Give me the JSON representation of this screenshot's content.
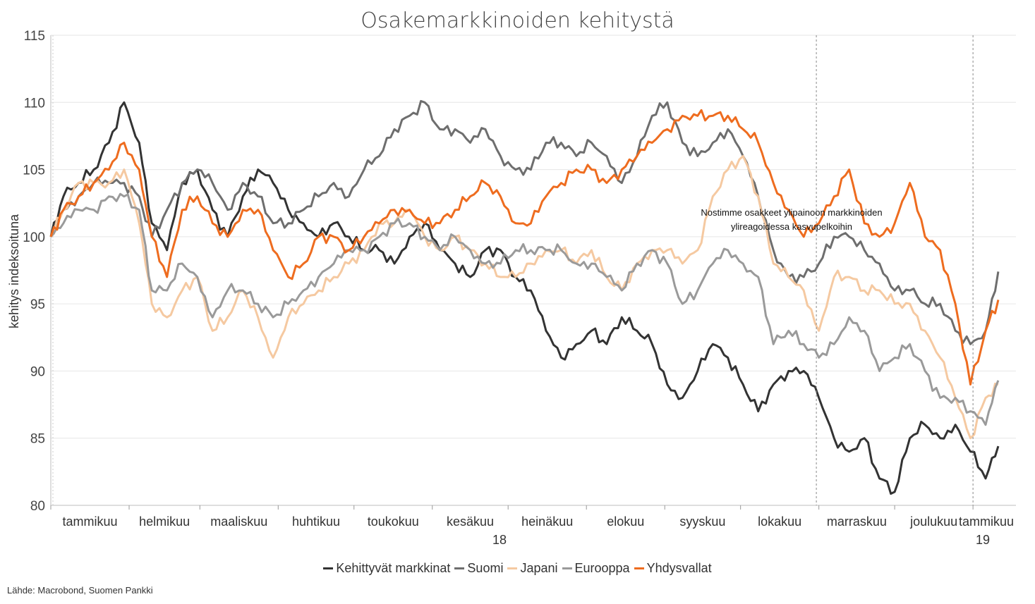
{
  "chart_data": {
    "type": "line",
    "title": "Osakemarkkinoiden kehitystä",
    "ylabel": "kehitys indeksoituna",
    "ylim": [
      80,
      115
    ],
    "yticks": [
      80,
      85,
      90,
      95,
      100,
      105,
      110,
      115
    ],
    "grid": true,
    "legend_position": "bottom",
    "months": [
      "tammikuu",
      "helmikuu",
      "maaliskuu",
      "huhtikuu",
      "toukokuu",
      "kesäkuu",
      "heinäkuu",
      "elokuu",
      "syyskuu",
      "lokakuu",
      "marraskuu",
      "joulukuu",
      "tammikuu"
    ],
    "year_labels": [
      "18",
      "19"
    ],
    "x": [
      "2018-01-01",
      "2018-01-06",
      "2018-01-12",
      "2018-01-18",
      "2018-01-24",
      "2018-01-30",
      "2018-02-05",
      "2018-02-10",
      "2018-02-16",
      "2018-02-22",
      "2018-02-28",
      "2018-03-06",
      "2018-03-12",
      "2018-03-18",
      "2018-03-24",
      "2018-03-30",
      "2018-04-05",
      "2018-04-11",
      "2018-04-17",
      "2018-04-23",
      "2018-04-29",
      "2018-05-05",
      "2018-05-11",
      "2018-05-17",
      "2018-05-23",
      "2018-05-29",
      "2018-06-04",
      "2018-06-10",
      "2018-06-16",
      "2018-06-22",
      "2018-06-28",
      "2018-07-04",
      "2018-07-10",
      "2018-07-16",
      "2018-07-22",
      "2018-07-28",
      "2018-08-03",
      "2018-08-09",
      "2018-08-15",
      "2018-08-21",
      "2018-08-27",
      "2018-09-02",
      "2018-09-08",
      "2018-09-14",
      "2018-09-20",
      "2018-09-26",
      "2018-10-02",
      "2018-10-08",
      "2018-10-14",
      "2018-10-20",
      "2018-10-26",
      "2018-11-01",
      "2018-11-07",
      "2018-11-13",
      "2018-11-19",
      "2018-11-25",
      "2018-12-01",
      "2018-12-07",
      "2018-12-13",
      "2018-12-19",
      "2018-12-25",
      "2018-12-31",
      "2019-01-06",
      "2019-01-11"
    ],
    "series": [
      {
        "name": "Kehittyvät markkinat",
        "color": "#333333",
        "values": [
          100,
          103,
          104,
          105,
          107,
          110,
          107,
          101,
          99,
          104,
          105,
          102,
          100,
          103,
          105,
          104,
          102,
          101,
          100,
          101,
          100,
          99,
          99,
          98,
          100,
          101,
          99,
          98,
          97,
          99,
          99,
          97,
          96,
          93,
          91,
          92,
          93,
          92,
          94,
          93,
          92,
          89,
          88,
          90,
          92,
          91,
          89,
          87,
          89,
          90,
          90,
          88,
          85,
          84,
          85,
          82,
          81,
          85,
          86,
          85,
          86,
          84,
          82,
          84.4
        ]
      },
      {
        "name": "Suomi",
        "color": "#6e6e6e",
        "values": [
          100,
          102,
          103,
          104,
          104,
          104,
          103,
          100,
          102,
          104,
          105,
          104,
          102,
          104,
          103,
          101,
          101,
          102,
          103,
          104,
          103,
          105,
          106,
          108,
          109,
          110,
          108,
          108,
          107,
          108,
          106,
          105,
          105,
          107,
          107,
          106,
          107,
          106,
          104,
          106,
          109,
          110,
          107,
          106,
          107,
          108,
          106,
          103,
          99,
          97,
          97,
          98,
          100,
          100,
          99,
          98,
          96,
          96,
          95,
          95,
          93,
          92,
          93,
          97.4
        ]
      },
      {
        "name": "Japani",
        "color": "#f5c9a1",
        "values": [
          100,
          102,
          104,
          104,
          104,
          105,
          101,
          95,
          94,
          96,
          97,
          93,
          94,
          96,
          94,
          91,
          94,
          95,
          96,
          97,
          98,
          99,
          101,
          101,
          102,
          100,
          99,
          100,
          99,
          98,
          97,
          97,
          98,
          99,
          99,
          98,
          99,
          97,
          96,
          98,
          99,
          99,
          98,
          99,
          103,
          105,
          106,
          103,
          98,
          97,
          96,
          93,
          97,
          97,
          96,
          96,
          95,
          95,
          93,
          91,
          88,
          85,
          88,
          89
        ]
      },
      {
        "name": "Eurooppa",
        "color": "#9a9a9a",
        "values": [
          100,
          101,
          102,
          102,
          103,
          103,
          102,
          96,
          96,
          98,
          97,
          94,
          96,
          96,
          95,
          94,
          95,
          96,
          97,
          98,
          99,
          99,
          100,
          101,
          101,
          100,
          99,
          100,
          99,
          98,
          98,
          99,
          99,
          99,
          99,
          98,
          98,
          97,
          96,
          98,
          99,
          98,
          95,
          96,
          98,
          99,
          98,
          97,
          92,
          93,
          92,
          91,
          92,
          94,
          93,
          90,
          91,
          92,
          90,
          88,
          88,
          87,
          86,
          89.3
        ]
      },
      {
        "name": "Yhdysvallat",
        "color": "#ee6c1f",
        "values": [
          100,
          102,
          103,
          104,
          105,
          107,
          105,
          100,
          97,
          102,
          103,
          101,
          100,
          102,
          102,
          99,
          97,
          98,
          100,
          100,
          99,
          100,
          101,
          102,
          102,
          101,
          101,
          102,
          103,
          104,
          103,
          101,
          101,
          103,
          104,
          105,
          105,
          104,
          105,
          106,
          107,
          108,
          109,
          109,
          109,
          109,
          108,
          107,
          104,
          102,
          100,
          101,
          103,
          105,
          101,
          100,
          101,
          104,
          100,
          99,
          95,
          89,
          93,
          95.3
        ]
      }
    ],
    "vlines": [
      "2018-10-31",
      "2019-01-01"
    ],
    "annotation": {
      "line1": "Nostimme osakkeet ylipainoon markkinoiden",
      "line2": "ylireagoidessa kasvupelkoihin"
    },
    "source": "Lähde: Macrobond, Suomen Pankki"
  }
}
